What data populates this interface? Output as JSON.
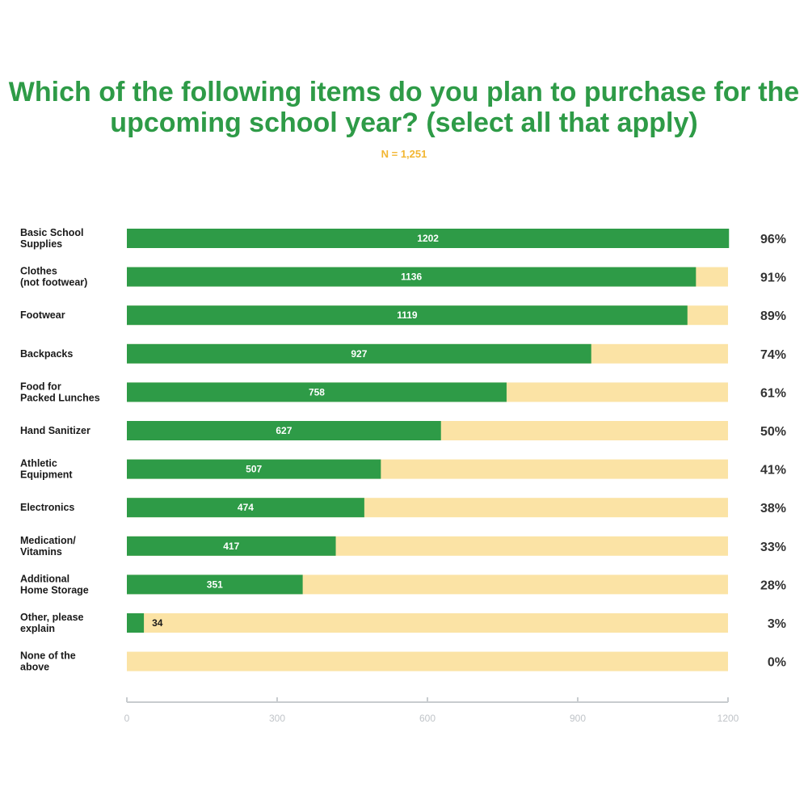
{
  "chart_data": {
    "type": "bar",
    "orientation": "horizontal",
    "stacked": true,
    "title": "Which of the following items do you plan to purchase for the upcoming school year? (select all that apply)",
    "subtitle": "N = 1,251",
    "categories": [
      [
        "Basic School",
        "Supplies"
      ],
      [
        "Clothes",
        "(not footwear)"
      ],
      [
        "Footwear"
      ],
      [
        "Backpacks"
      ],
      [
        "Food for",
        "Packed Lunches"
      ],
      [
        "Hand Sanitizer"
      ],
      [
        "Athletic",
        "Equipment"
      ],
      [
        "Electronics"
      ],
      [
        "Medication/",
        "Vitamins"
      ],
      [
        "Additional",
        "Home Storage"
      ],
      [
        "Other, please",
        "explain"
      ],
      [
        "None of the",
        "above"
      ]
    ],
    "values": [
      1202,
      1136,
      1119,
      927,
      758,
      627,
      507,
      474,
      417,
      351,
      34,
      0
    ],
    "value_labels": [
      "1202",
      "1136",
      "1119",
      "927",
      "758",
      "627",
      "507",
      "474",
      "417",
      "351",
      "34",
      ""
    ],
    "percentages": [
      "96%",
      "91%",
      "89%",
      "74%",
      "61%",
      "50%",
      "41%",
      "38%",
      "33%",
      "28%",
      "3%",
      "0%"
    ],
    "xlim": [
      0,
      1200
    ],
    "xticks": [
      "0",
      "300",
      "600",
      "900",
      "1200"
    ],
    "grid": false,
    "colors": {
      "bar": "#2e9b47",
      "track": "#fbe3a5",
      "title": "#2e9b47",
      "subtitle": "#f2b632",
      "axis": "#c8cccf"
    }
  }
}
